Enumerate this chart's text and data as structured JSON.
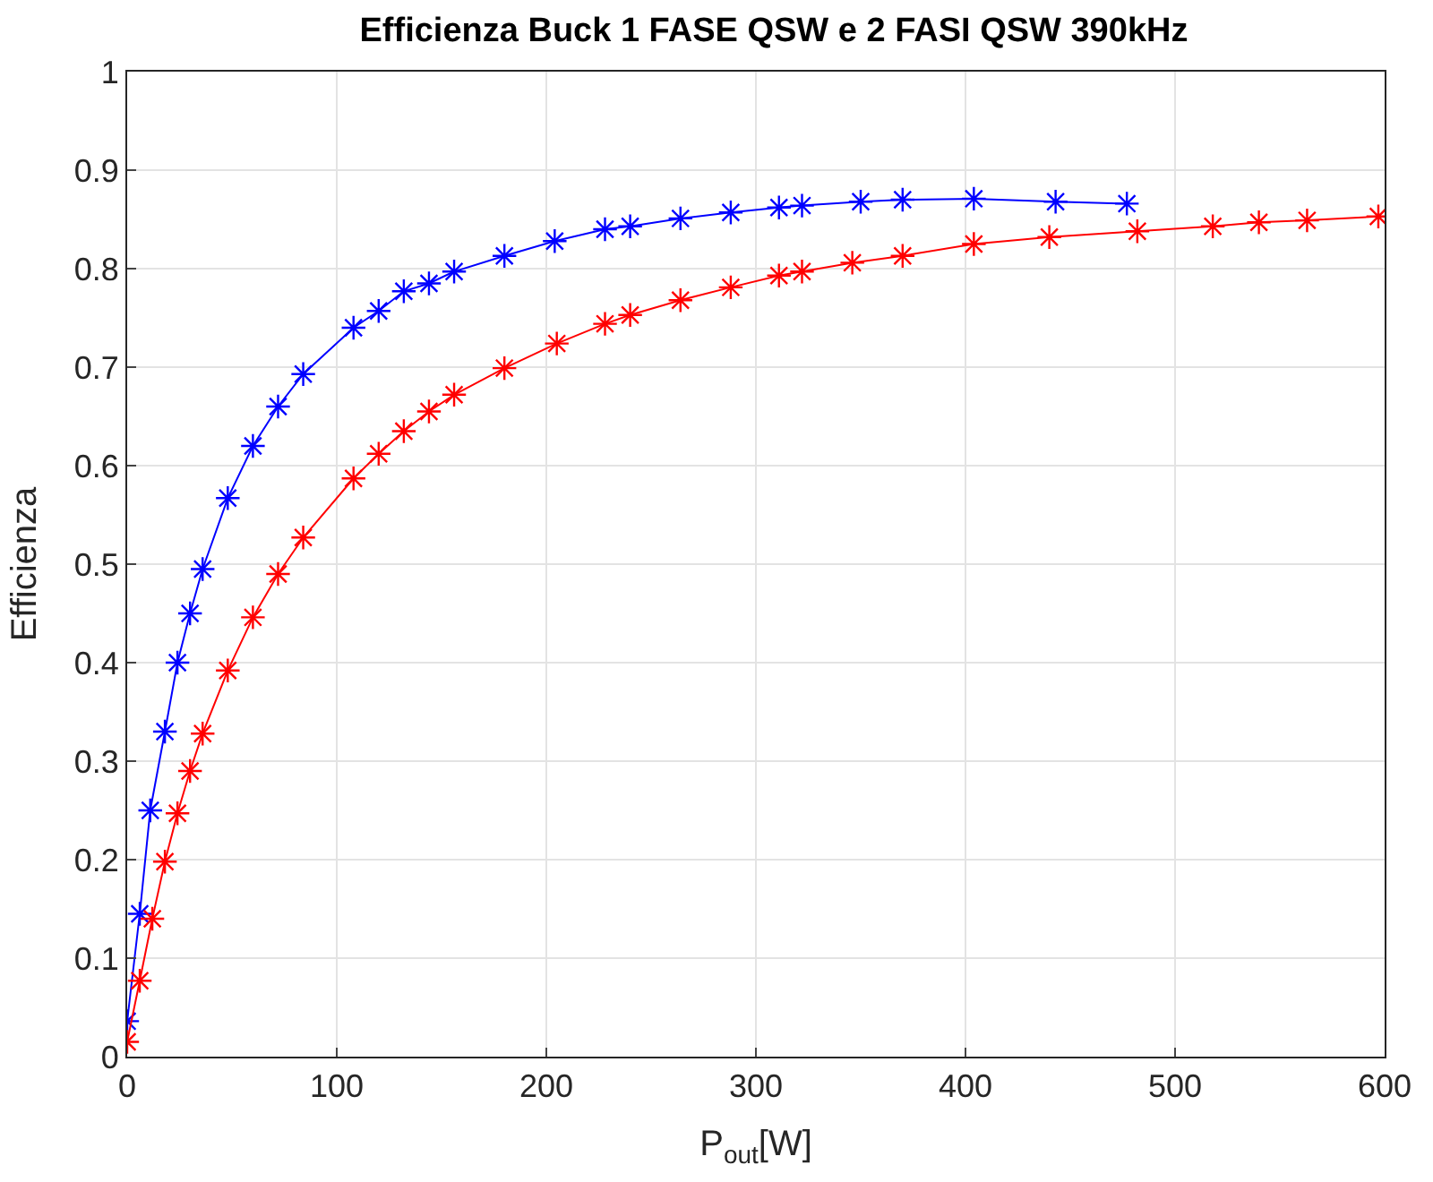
{
  "chart_data": {
    "type": "line",
    "title": "Efficienza Buck 1 FASE QSW e 2 FASI QSW 390kHz",
    "xlabel": "P$_{out}$[W]",
    "ylabel": "Efficienza",
    "xlim": [
      0,
      600
    ],
    "xticks": [
      0,
      100,
      200,
      300,
      400,
      500,
      600
    ],
    "ylim": [
      0,
      1
    ],
    "yticks": [
      0,
      0.1,
      0.2,
      0.3,
      0.4,
      0.5,
      0.6,
      0.7,
      0.8,
      0.9,
      1
    ],
    "grid": true,
    "marker": "cross",
    "line_style": "solid",
    "series": [
      {
        "color": "#0000ff",
        "x": [
          0,
          6,
          11,
          18,
          24,
          30,
          36,
          48,
          60,
          72,
          84,
          108,
          120,
          132,
          144,
          156,
          180,
          204,
          228,
          240,
          264,
          288,
          311,
          322,
          350,
          370,
          404,
          443,
          477
        ],
        "values": [
          0.036,
          0.145,
          0.25,
          0.33,
          0.4,
          0.45,
          0.495,
          0.567,
          0.62,
          0.66,
          0.693,
          0.74,
          0.757,
          0.777,
          0.785,
          0.797,
          0.813,
          0.828,
          0.84,
          0.843,
          0.851,
          0.857,
          0.862,
          0.864,
          0.868,
          0.87,
          0.871,
          0.868,
          0.866
        ]
      },
      {
        "color": "#ff0000",
        "x": [
          0,
          6,
          12,
          18,
          24,
          30,
          36,
          48,
          60,
          72,
          84,
          108,
          120,
          132,
          144,
          156,
          180,
          205,
          228,
          240,
          264,
          288,
          311,
          322,
          346,
          370,
          404,
          440,
          482,
          518,
          540,
          563,
          597
        ],
        "values": [
          0.015,
          0.077,
          0.14,
          0.198,
          0.247,
          0.29,
          0.328,
          0.392,
          0.446,
          0.49,
          0.527,
          0.587,
          0.612,
          0.635,
          0.655,
          0.672,
          0.699,
          0.724,
          0.744,
          0.753,
          0.768,
          0.781,
          0.793,
          0.797,
          0.806,
          0.813,
          0.825,
          0.832,
          0.838,
          0.843,
          0.847,
          0.849,
          0.853
        ]
      }
    ]
  }
}
